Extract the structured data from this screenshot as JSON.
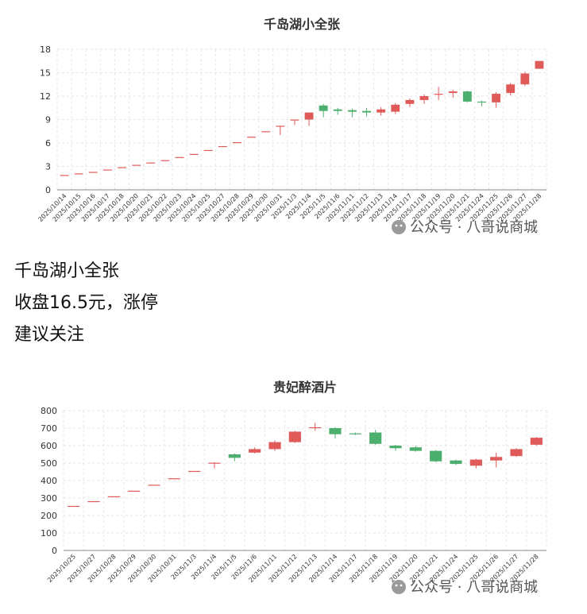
{
  "watermark": "公众号 · 八哥说商城",
  "post": {
    "line1": "千岛湖小全张",
    "line2": "收盘16.5元，涨停",
    "line3": "建议关注"
  },
  "colors": {
    "up": "#e05a5a",
    "down": "#4caf6d",
    "grid": "#e6e6e6",
    "axis": "#888888"
  },
  "chart_data": [
    {
      "type": "candlestick",
      "title": "千岛湖小全张",
      "ylim": [
        0,
        18
      ],
      "yticks": [
        0,
        3,
        6,
        9,
        12,
        15,
        18
      ],
      "grid": true,
      "categories": [
        "2025/10/14",
        "2025/10/15",
        "2025/10/16",
        "2025/10/17",
        "2025/10/18",
        "2025/10/20",
        "2025/10/21",
        "2025/10/22",
        "2025/10/23",
        "2025/10/24",
        "2025/10/25",
        "2025/10/27",
        "2025/10/28",
        "2025/10/29",
        "2025/10/30",
        "2025/10/31",
        "2025/11/3",
        "2025/11/4",
        "2025/11/5",
        "2025/11/6",
        "2025/11/11",
        "2025/11/12",
        "2025/11/13",
        "2025/11/14",
        "2025/11/17",
        "2025/11/18",
        "2025/11/19",
        "2025/11/20",
        "2025/11/21",
        "2025/11/24",
        "2025/11/25",
        "2025/11/26",
        "2025/11/27",
        "2025/11/28"
      ],
      "ohlc": [
        [
          1.9,
          1.9,
          1.9,
          1.9
        ],
        [
          2.1,
          2.1,
          2.1,
          2.1
        ],
        [
          2.3,
          2.3,
          2.3,
          2.3
        ],
        [
          2.6,
          2.6,
          2.6,
          2.6
        ],
        [
          2.9,
          2.9,
          2.9,
          2.9
        ],
        [
          3.2,
          3.2,
          3.2,
          3.2
        ],
        [
          3.5,
          3.5,
          3.5,
          3.5
        ],
        [
          3.8,
          3.8,
          3.8,
          3.8
        ],
        [
          4.2,
          4.2,
          4.2,
          4.2
        ],
        [
          4.6,
          4.6,
          4.6,
          4.6
        ],
        [
          5.1,
          5.1,
          5.1,
          5.1
        ],
        [
          5.6,
          5.6,
          5.6,
          5.6
        ],
        [
          6.1,
          6.1,
          6.1,
          6.1
        ],
        [
          6.8,
          6.8,
          6.8,
          6.8
        ],
        [
          7.5,
          7.5,
          7.5,
          7.5
        ],
        [
          8.2,
          8.2,
          7.0,
          8.2
        ],
        [
          9.0,
          9.0,
          8.3,
          9.0
        ],
        [
          9.0,
          9.9,
          8.2,
          9.9
        ],
        [
          10.8,
          10.1,
          9.3,
          11.0
        ],
        [
          10.3,
          10.1,
          9.6,
          10.5
        ],
        [
          10.2,
          10.0,
          9.3,
          10.4
        ],
        [
          10.1,
          9.9,
          9.4,
          10.5
        ],
        [
          9.9,
          10.3,
          9.5,
          10.6
        ],
        [
          10.0,
          10.9,
          9.7,
          11.1
        ],
        [
          11.0,
          11.5,
          10.6,
          11.7
        ],
        [
          11.5,
          12.0,
          11.0,
          12.2
        ],
        [
          12.2,
          12.3,
          11.5,
          13.2
        ],
        [
          12.4,
          12.6,
          11.8,
          12.8
        ],
        [
          12.6,
          11.3,
          11.2,
          12.7
        ],
        [
          11.3,
          11.2,
          10.7,
          11.4
        ],
        [
          11.2,
          12.3,
          10.5,
          12.5
        ],
        [
          12.4,
          13.5,
          12.1,
          13.7
        ],
        [
          13.5,
          14.9,
          13.3,
          15.1
        ],
        [
          15.5,
          16.5,
          15.5,
          16.5
        ]
      ]
    },
    {
      "type": "candlestick",
      "title": "贵妃醉酒片",
      "ylim": [
        0,
        800
      ],
      "yticks": [
        0,
        100,
        200,
        300,
        400,
        500,
        600,
        700,
        800
      ],
      "grid": true,
      "categories": [
        "2025/10/25",
        "2025/10/27",
        "2025/10/28",
        "2025/10/29",
        "2025/10/30",
        "2025/10/31",
        "2025/11/3",
        "2025/11/4",
        "2025/11/5",
        "2025/11/6",
        "2025/11/11",
        "2025/11/12",
        "2025/11/13",
        "2025/11/14",
        "2025/11/17",
        "2025/11/18",
        "2025/11/19",
        "2025/11/20",
        "2025/11/21",
        "2025/11/24",
        "2025/11/25",
        "2025/11/26",
        "2025/11/27",
        "2025/11/28"
      ],
      "ohlc": [
        [
          255,
          255,
          255,
          255
        ],
        [
          282,
          282,
          282,
          282
        ],
        [
          310,
          310,
          310,
          310
        ],
        [
          342,
          342,
          342,
          342
        ],
        [
          376,
          376,
          376,
          376
        ],
        [
          413,
          413,
          413,
          413
        ],
        [
          455,
          455,
          455,
          455
        ],
        [
          498,
          502,
          470,
          505
        ],
        [
          550,
          530,
          510,
          555
        ],
        [
          560,
          580,
          555,
          590
        ],
        [
          580,
          620,
          570,
          630
        ],
        [
          620,
          680,
          615,
          685
        ],
        [
          700,
          705,
          685,
          730
        ],
        [
          700,
          665,
          640,
          705
        ],
        [
          670,
          665,
          660,
          675
        ],
        [
          675,
          610,
          605,
          690
        ],
        [
          600,
          585,
          570,
          605
        ],
        [
          590,
          570,
          565,
          600
        ],
        [
          570,
          510,
          505,
          575
        ],
        [
          515,
          495,
          490,
          520
        ],
        [
          485,
          520,
          470,
          525
        ],
        [
          515,
          535,
          475,
          560
        ],
        [
          540,
          580,
          535,
          585
        ],
        [
          605,
          645,
          600,
          650
        ]
      ]
    }
  ]
}
